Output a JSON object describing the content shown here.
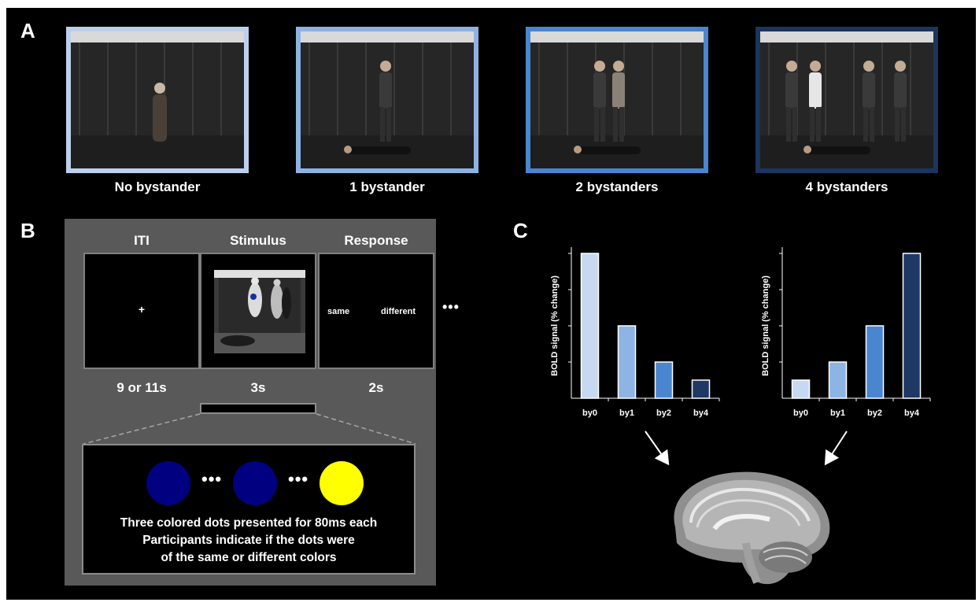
{
  "panel_letters": {
    "a": "A",
    "b": "B",
    "c": "C"
  },
  "panel_a": {
    "conditions": [
      {
        "caption": "No bystander",
        "border_color": "#bcd0ec",
        "bystanders": 0
      },
      {
        "caption": "1 bystander",
        "border_color": "#8eb2e2",
        "bystanders": 1
      },
      {
        "caption": "2 bystanders",
        "border_color": "#4a86d0",
        "bystanders": 2
      },
      {
        "caption": "4 bystanders",
        "border_color": "#1c355e",
        "bystanders": 4
      }
    ]
  },
  "panel_b": {
    "phases": [
      {
        "title": "ITI",
        "duration": "9 or 11s"
      },
      {
        "title": "Stimulus",
        "duration": "3s"
      },
      {
        "title": "Response",
        "duration": "2s"
      }
    ],
    "fixation": "+",
    "response_options": {
      "left": "same",
      "right": "different"
    },
    "continuation": "•••",
    "dots": {
      "first_color": "#000080",
      "second_color": "#000080",
      "third_color": "#ffff00",
      "separator": "•••"
    },
    "description": [
      "Three colored dots presented for 80ms each",
      "Participants indicate if the dots were",
      "of the same or different colors"
    ]
  },
  "chart_data": [
    {
      "type": "bar",
      "ylabel": "BOLD signal (% change)",
      "categories": [
        "by0",
        "by1",
        "by2",
        "by4"
      ],
      "values": [
        4,
        2,
        1,
        0.5
      ],
      "ylim": [
        0,
        4
      ],
      "colors": [
        "#c6d9f1",
        "#8eb4e3",
        "#4a86d0",
        "#1f3864"
      ]
    },
    {
      "type": "bar",
      "ylabel": "BOLD signal (% change)",
      "categories": [
        "by0",
        "by1",
        "by2",
        "by4"
      ],
      "values": [
        0.5,
        1,
        2,
        4
      ],
      "ylim": [
        0,
        4
      ],
      "colors": [
        "#c6d9f1",
        "#8eb4e3",
        "#4a86d0",
        "#1f3864"
      ]
    }
  ]
}
